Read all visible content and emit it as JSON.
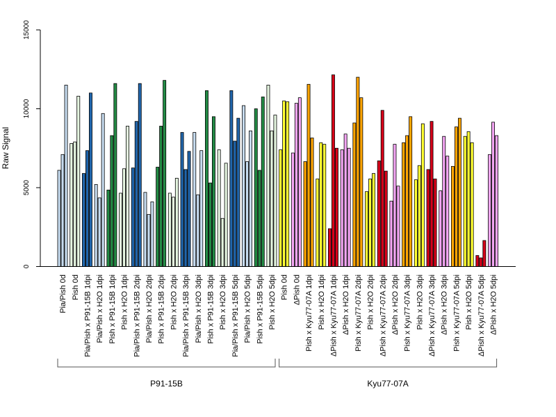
{
  "chart_data": {
    "type": "bar",
    "ylabel": "Raw Signal",
    "ylim": [
      0,
      15000
    ],
    "yticks": [
      0,
      5000,
      10000,
      15000
    ],
    "grid": false,
    "legend": "none",
    "categories": [
      "Pia/Pish 0d",
      "Pish 0d",
      "Pia/Pish x P91-15B 1dpi",
      "Pia/Pish x H2O 1dpi",
      "Pish x P91-15B 1dpi",
      "Pish x H2O 1dpi",
      "Pia/Pish x P91-15B 2dpi",
      "Pia/Pish x H2O 2dpi",
      "Pish x P91-15B 2dpi",
      "Pish x H2O 2dpi",
      "Pia/Pish x P91-15B 3dpi",
      "Pia/Pish x H2O 3dpi",
      "Pish x P91-15B 3dpi",
      "Pish x H2O 3dpi",
      "Pia/Pish x P91-15B 5dpi",
      "Pia/Pish x H2O 5dpi",
      "Pish x P91-15B 5dpi",
      "Pish x H2O 5dpi",
      "Pish 0d",
      "ΔPish 0d",
      "Pish x Kyu77-07A 1dpi",
      "Pish x H2O 1dpi",
      "ΔPish x Kyu77-07A 1dpi",
      "ΔPish x H2O 1dpi",
      "Pish x Kyu77-07A 2dpi",
      "Pish x H2O 2dpi",
      "ΔPish x Kyu77-07A 2dpi",
      "ΔPish x H2O 2dpi",
      "Pish x Kyu77-07A 3dpi",
      "Pish x H2O 3dpi",
      "ΔPish x Kyu77-07A 3dpi",
      "ΔPish x H2O 3dpi",
      "Pish x Kyu77-07A 5dpi",
      "Pish x H2O 5dpi",
      "ΔPish x Kyu77-07A 5dpi",
      "ΔPish x H2O 5dpi"
    ],
    "category_colors": [
      "#c6dbef",
      "#e5f5e0",
      "#2166ac",
      "#c6dbef",
      "#238b45",
      "#e5f5e0",
      "#2166ac",
      "#c6dbef",
      "#238b45",
      "#e5f5e0",
      "#2166ac",
      "#c6dbef",
      "#238b45",
      "#e5f5e0",
      "#2166ac",
      "#c6dbef",
      "#238b45",
      "#e5f5e0",
      "#ffff33",
      "#f4a6f4",
      "#ffa500",
      "#ffff33",
      "#d7001a",
      "#f4a6f4",
      "#ffa500",
      "#ffff33",
      "#d7001a",
      "#f4a6f4",
      "#ffa500",
      "#ffff33",
      "#d7001a",
      "#f4a6f4",
      "#ffa500",
      "#ffff33",
      "#d7001a",
      "#f4a6f4"
    ],
    "replicates": [
      [
        6100,
        7100,
        11500
      ],
      [
        7800,
        7900,
        10800
      ],
      [
        5900,
        7350,
        11000
      ],
      [
        5200,
        4350,
        9700
      ],
      [
        4850,
        8300,
        11600
      ],
      [
        4650,
        6200,
        8900
      ],
      [
        6250,
        9200,
        11600
      ],
      [
        4700,
        3300,
        4100
      ],
      [
        6300,
        8900,
        11800
      ],
      [
        4650,
        4400,
        5600
      ],
      [
        8500,
        6150,
        7300
      ],
      [
        8500,
        4550,
        7350
      ],
      [
        11150,
        5300,
        9500
      ],
      [
        7400,
        3050,
        6550
      ],
      [
        11150,
        7950,
        9400
      ],
      [
        10200,
        6650,
        8600
      ],
      [
        10000,
        6100,
        10750
      ],
      [
        11500,
        8600,
        9600
      ],
      [
        7400,
        10500,
        10450
      ],
      [
        7200,
        10350,
        10700
      ],
      [
        6650,
        11550,
        8150
      ],
      [
        5550,
        7850,
        7750
      ],
      [
        2400,
        12150,
        7500
      ],
      [
        7400,
        8400,
        7500
      ],
      [
        9100,
        12000,
        10700
      ],
      [
        4750,
        5550,
        5900
      ],
      [
        6700,
        9900,
        6050
      ],
      [
        4150,
        7750,
        5100
      ],
      [
        7850,
        8300,
        9500
      ],
      [
        5500,
        6400,
        9050
      ],
      [
        6150,
        9200,
        5550
      ],
      [
        4800,
        8250,
        7000
      ],
      [
        6350,
        8850,
        9400
      ],
      [
        8250,
        8550,
        7850
      ],
      [
        700,
        550,
        1650
      ],
      [
        7100,
        9150,
        8300
      ]
    ],
    "groups": [
      {
        "label": "P91-15B",
        "from": 0,
        "to": 17
      },
      {
        "label": "Kyu77-07A",
        "from": 18,
        "to": 35
      }
    ]
  }
}
